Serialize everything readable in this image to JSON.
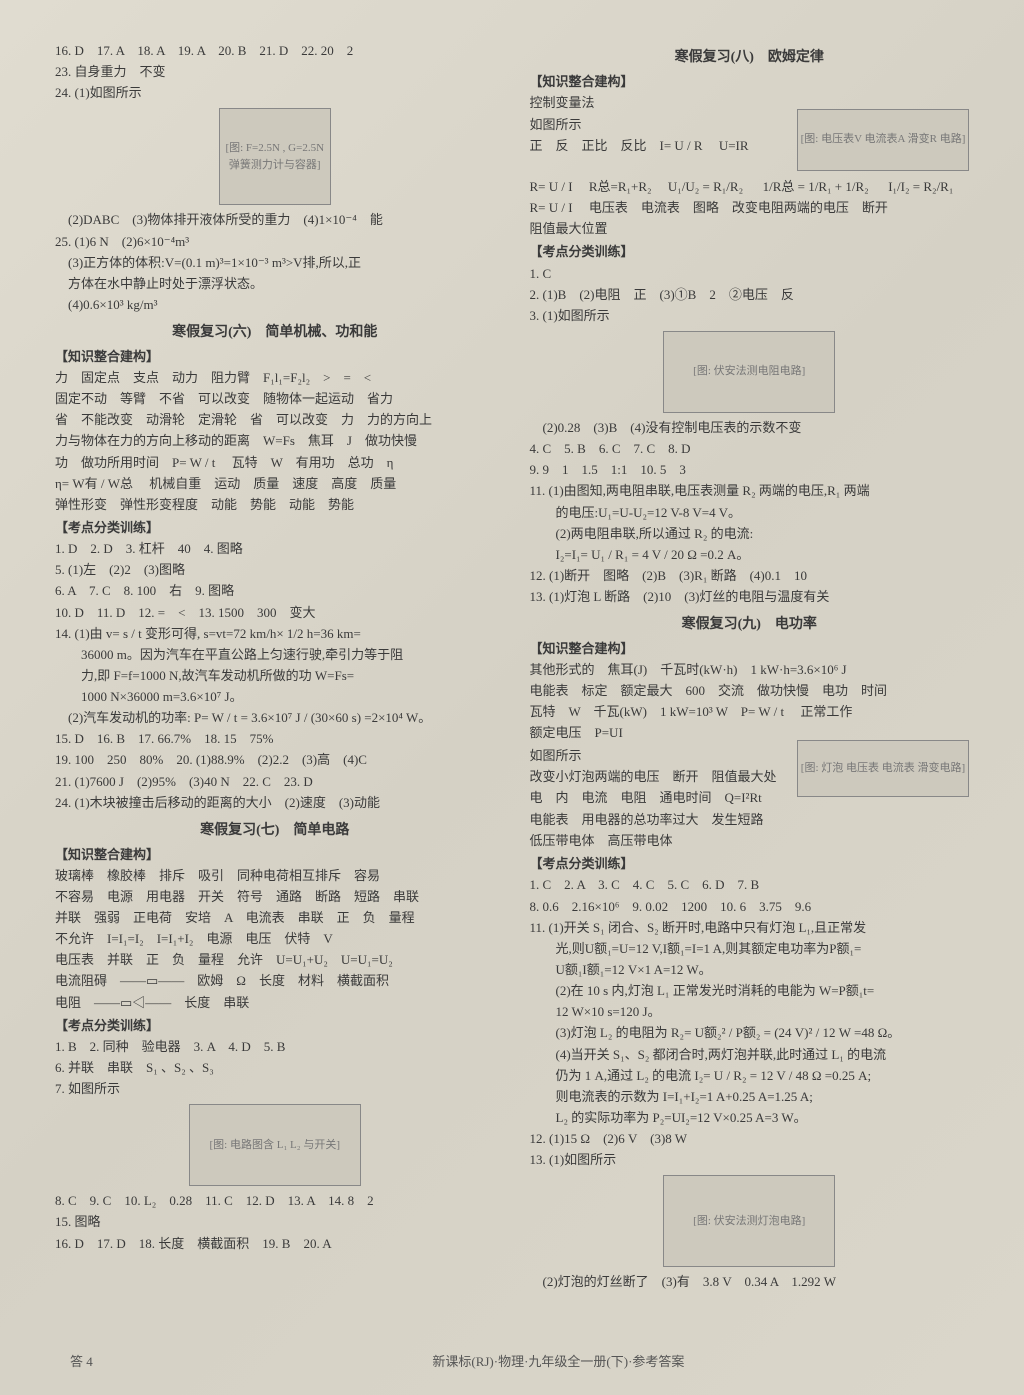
{
  "left": {
    "l1": "16. D　17. A　18. A　19. A　20. B　21. D　22. 20　2",
    "l2": "23. 自身重力　不变",
    "l3": "24. (1)如图所示",
    "img1": "[图: F=2.5N , G=2.5N 弹簧测力计与容器]",
    "l4": "　(2)DABC　(3)物体排开液体所受的重力　(4)1×10⁻⁴　能",
    "l5": "25. (1)6 N　(2)6×10⁻⁴m³",
    "l6": "　(3)正方体的体积:V=(0.1 m)³=1×10⁻³ m³>V排,所以,正",
    "l7": "　方体在水中静止时处于漂浮状态。",
    "l8": "　(4)0.6×10³ kg/m³",
    "t6": "寒假复习(六)　简单机械、功和能",
    "s1": "【知识整合建构】",
    "k1": "力　固定点　支点　动力　阻力臂　F₁l₁=F₂l₂　>　=　<",
    "k2": "固定不动　等臂　不省　可以改变　随物体一起运动　省力",
    "k3": "省　不能改变　动滑轮　定滑轮　省　可以改变　力　力的方向上",
    "k4": "力与物体在力的方向上移动的距离　W=Fs　焦耳　J　做功快慢",
    "k5": "功　做功所用时间　P= W / t 　瓦特　W　有用功　总功　η",
    "k6": "η= W有 / W总 　机械自重　运动　质量　速度　高度　质量",
    "k7": "弹性形变　弹性形变程度　动能　势能　动能　势能",
    "s2": "【考点分类训练】",
    "p1": "1. D　2. D　3. 杠杆　40　4. 图略",
    "p2": "5. (1)左　(2)2　(3)图略",
    "p3": "6. A　7. C　8. 100　右　9. 图略",
    "p4": "10. D　11. D　12. =　<　13. 1500　300　变大",
    "p5": "14. (1)由 v= s / t 变形可得, s=vt=72 km/h× 1/2 h=36 km=",
    "p6": "　　36000 m。因为汽车在平直公路上匀速行驶,牵引力等于阻",
    "p7": "　　力,即 F=f=1000 N,故汽车发动机所做的功 W=Fs=",
    "p8": "　　1000 N×36000 m=3.6×10⁷ J。",
    "p9": "　(2)汽车发动机的功率: P= W / t = 3.6×10⁷ J / (30×60 s) =2×10⁴ W。",
    "p10": "15. D　16. B　17. 66.7%　18. 15　75%",
    "p11": "19. 100　250　80%　20. (1)88.9%　(2)2.2　(3)高　(4)C",
    "p12": "21. (1)7600 J　(2)95%　(3)40 N　22. C　23. D",
    "p13": "24. (1)木块被撞击后移动的距离的大小　(2)速度　(3)动能",
    "t7": "寒假复习(七)　简单电路",
    "s3": "【知识整合建构】",
    "q1": "玻璃棒　橡胶棒　排斥　吸引　同种电荷相互排斥　容易",
    "q2": "不容易　电源　用电器　开关　符号　通路　断路　短路　串联",
    "q3": "并联　强弱　正电荷　安培　A　电流表　串联　正　负　量程",
    "q4": "不允许　I=I₁=I₂　I=I₁+I₂　电源　电压　伏特　V",
    "q5": "电压表　并联　正　负　量程　允许　U=U₁+U₂　U=U₁=U₂",
    "q6": "电流阻碍　——▭——　欧姆　Ω　长度　材料　横截面积",
    "q7": "电阻　——▭◁——　长度　串联",
    "s4": "【考点分类训练】",
    "r1": "1. B　2. 同种　验电器　3. A　4. D　5. B",
    "r2": "6. 并联　串联　S₁ 、S₂ 、S₃",
    "r3": "7. 如图所示",
    "img2": "[图: 电路图含 L₁ L₂ 与开关]",
    "r4": "8. C　9. C　10. L₂　0.28　11. C　12. D　13. A　14. 8　2",
    "r5": "15. 图略",
    "r6": "16. D　17. D　18. 长度　横截面积　19. B　20. A"
  },
  "right": {
    "t8": "寒假复习(八)　欧姆定律",
    "s1": "【知识整合建构】",
    "k1": "控制变量法",
    "k2": "如图所示",
    "img3": "[图: 电压表V 电流表A 滑变R 电路]",
    "k3": "正　反　正比　反比　I= U / R 　U=IR",
    "k4": "R= U / I 　R总=R₁+R₂　 U₁/U₂ = R₁/R₂ 　 1/R总 = 1/R₁ + 1/R₂ 　 I₁/I₂ = R₂/R₁",
    "k5": "R= U / I 　电压表　电流表　图略　改变电阻两端的电压　断开",
    "k6": "阻值最大位置",
    "s2": "【考点分类训练】",
    "p1": "1. C",
    "p2": "2. (1)B　(2)电阻　正　(3)①B　2　②电压　反",
    "p3": "3. (1)如图所示",
    "img4": "[图: 伏安法测电阻电路]",
    "p4": "　(2)0.28　(3)B　(4)没有控制电压表的示数不变",
    "p5": "4. C　5. B　6. C　7. C　8. D",
    "p6": "9. 9　1　1.5　1:1　10. 5　3",
    "p7": "11. (1)由图知,两电阻串联,电压表测量 R₂ 两端的电压,R₁ 两端",
    "p8": "　　的电压:U₁=U-U₂=12 V-8 V=4 V。",
    "p9": "　　(2)两电阻串联,所以通过 R₂ 的电流:",
    "p10": "　　I₂=I₁= U₁ / R₁ = 4 V / 20 Ω =0.2 A。",
    "p11": "12. (1)断开　图略　(2)B　(3)R₁ 断路　(4)0.1　10",
    "p12": "13. (1)灯泡 L 断路　(2)10　(3)灯丝的电阻与温度有关",
    "t9": "寒假复习(九)　电功率",
    "s3": "【知识整合建构】",
    "q1": "其他形式的　焦耳(J)　千瓦时(kW·h)　1 kW·h=3.6×10⁶ J",
    "q2": "电能表　标定　额定最大　600　交流　做功快慢　电功　时间",
    "q3": "瓦特　W　千瓦(kW)　1 kW=10³ W　P= W / t 　正常工作",
    "q4": "额定电压　P=UI",
    "q5": "如图所示",
    "img5": "[图: 灯泡 电压表 电流表 滑变电路]",
    "q6": "改变小灯泡两端的电压　断开　阻值最大处",
    "q7": "电　内　电流　电阻　通电时间　Q=I²Rt",
    "q8": "电能表　用电器的总功率过大　发生短路",
    "q9": "低压带电体　高压带电体",
    "s4": "【考点分类训练】",
    "r1": "1. C　2. A　3. C　4. C　5. C　6. D　7. B",
    "r2": "8. 0.6　2.16×10⁶　9. 0.02　1200　10. 6　3.75　9.6",
    "r3": "11. (1)开关 S₁ 闭合、S₂ 断开时,电路中只有灯泡 L₁,且正常发",
    "r4": "　　光,则U额₁=U=12 V,I额₁=I=1 A,则其额定电功率为P额₁=",
    "r5": "　　U额₁I额₁=12 V×1 A=12 W。",
    "r6": "　　(2)在 10 s 内,灯泡 L₁ 正常发光时消耗的电能为 W=P额₁t=",
    "r7": "　　12 W×10 s=120 J。",
    "r8": "　　(3)灯泡 L₂ 的电阻为 R₂= U额₂² / P额₂ = (24 V)² / 12 W =48 Ω。",
    "r9": "　　(4)当开关 S₁、S₂ 都闭合时,两灯泡并联,此时通过 L₁ 的电流",
    "r10": "　　仍为 1 A,通过 L₂ 的电流 I₂= U / R₂ = 12 V / 48 Ω =0.25 A;",
    "r11": "　　则电流表的示数为 I=I₁+I₂=1 A+0.25 A=1.25 A;",
    "r12": "　　L₂ 的实际功率为 P₂=UI₂=12 V×0.25 A=3 W。",
    "r13": "12. (1)15 Ω　(2)6 V　(3)8 W",
    "r14": "13. (1)如图所示",
    "img6": "[图: 伏安法测灯泡电路]",
    "r15": "　(2)灯泡的灯丝断了　(3)有　3.8 V　0.34 A　1.292 W"
  },
  "footer": {
    "left": "答 4",
    "center": "新课标(RJ)·物理·九年级全一册(下)·参考答案"
  }
}
